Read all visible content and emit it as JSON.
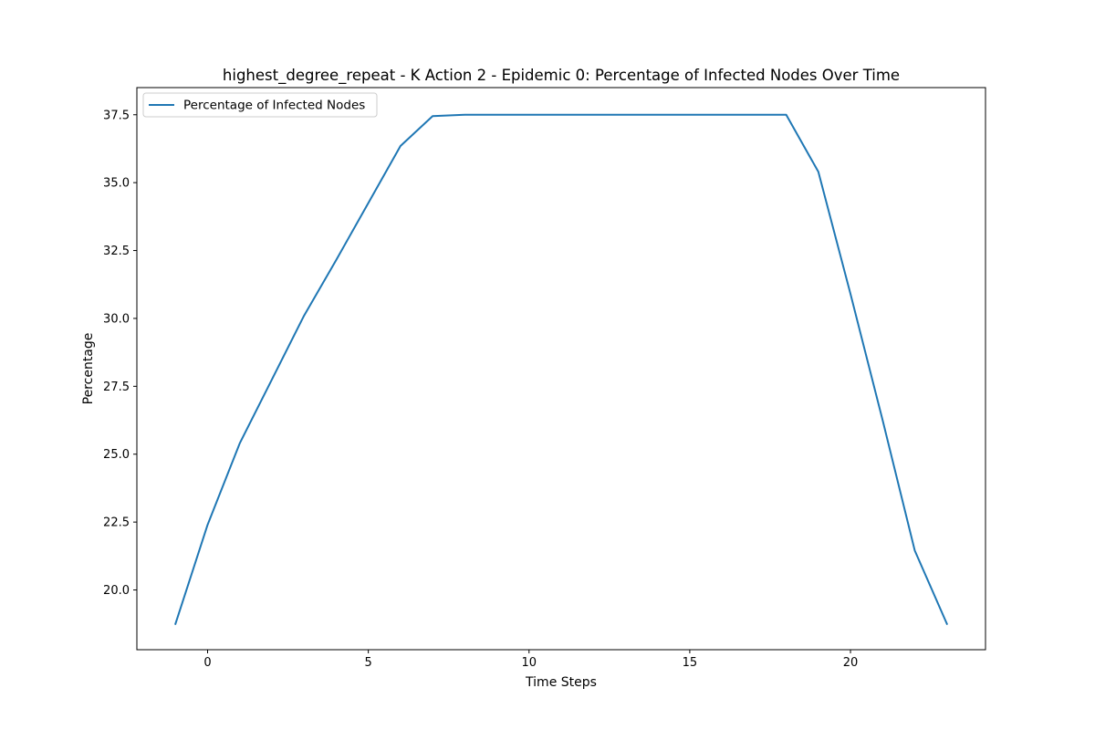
{
  "chart_data": {
    "type": "line",
    "title": "highest_degree_repeat - K Action 2 - Epidemic 0: Percentage of Infected Nodes Over Time",
    "xlabel": "Time Steps",
    "ylabel": "Percentage",
    "xlim": [
      -2.2,
      24.2
    ],
    "ylim": [
      17.8,
      38.5
    ],
    "x_ticks": [
      0,
      5,
      10,
      15,
      20
    ],
    "x_tick_labels": [
      "0",
      "5",
      "10",
      "15",
      "20"
    ],
    "y_ticks": [
      20.0,
      22.5,
      25.0,
      27.5,
      30.0,
      32.5,
      35.0,
      37.5
    ],
    "y_tick_labels": [
      "20.0",
      "22.5",
      "25.0",
      "27.5",
      "30.0",
      "32.5",
      "35.0",
      "37.5"
    ],
    "grid": false,
    "legend_position": "top-left",
    "series": [
      {
        "name": "Percentage of Infected Nodes",
        "color": "#1f77b4",
        "x": [
          -1,
          0,
          1,
          2,
          3,
          4,
          5,
          6,
          7,
          8,
          9,
          10,
          11,
          12,
          13,
          14,
          15,
          16,
          17,
          18,
          19,
          20,
          21,
          22,
          23
        ],
        "y": [
          18.75,
          22.4,
          25.4,
          27.75,
          30.1,
          32.15,
          34.25,
          36.35,
          37.45,
          37.5,
          37.5,
          37.5,
          37.5,
          37.5,
          37.5,
          37.5,
          37.5,
          37.5,
          37.5,
          37.5,
          35.4,
          30.9,
          26.25,
          21.45,
          18.75
        ]
      }
    ]
  }
}
